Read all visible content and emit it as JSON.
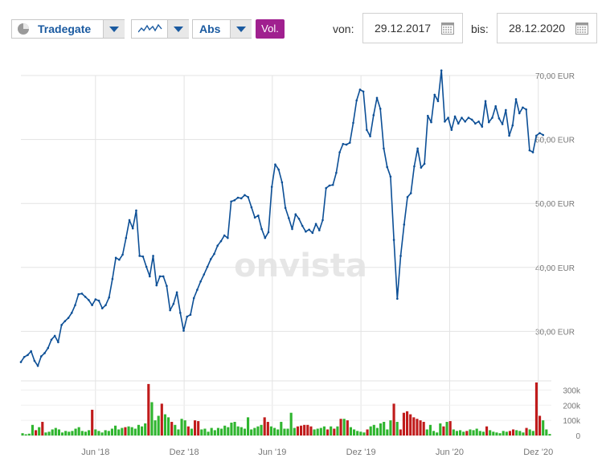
{
  "toolbar": {
    "exchange_label": "Tradegate",
    "mode_label": "Abs",
    "volume_label": "Vol.",
    "from_label": "von:",
    "from_date": "29.12.2017",
    "to_label": "bis:",
    "to_date": "28.12.2020"
  },
  "watermark": "onvista",
  "colors": {
    "line": "#0c4f96",
    "vol_up": "#2fb52f",
    "vol_down": "#c01b1b",
    "vol_button": "#a0208f",
    "grid": "#e3e3e3",
    "axis_text": "#777777"
  },
  "chart_data": [
    {
      "type": "line",
      "name": "price",
      "y_unit": "EUR",
      "ylim": [
        25,
        70.5
      ],
      "y_ticks": [
        30,
        40,
        50,
        60,
        70
      ],
      "y_tick_labels": [
        "30,00 EUR",
        "40,00 EUR",
        "50,00 EUR",
        "60,00 EUR",
        "70,00 EUR"
      ],
      "x_ticks": [
        "Jun '18",
        "Dez '18",
        "Jun '19",
        "Dez '19",
        "Jun '20",
        "Dez '20"
      ],
      "x_tick_dates": [
        "2018-06-01",
        "2018-12-01",
        "2019-06-01",
        "2019-12-01",
        "2020-06-01",
        "2020-12-01"
      ],
      "x_range": [
        "2017-12-29",
        "2020-12-28"
      ],
      "grid": true,
      "points": [
        [
          "2017-12-29",
          25.2
        ],
        [
          "2018-01-05",
          26.0
        ],
        [
          "2018-01-12",
          26.3
        ],
        [
          "2018-01-19",
          26.9
        ],
        [
          "2018-01-26",
          25.4
        ],
        [
          "2018-02-02",
          24.6
        ],
        [
          "2018-02-09",
          26.1
        ],
        [
          "2018-02-16",
          26.6
        ],
        [
          "2018-02-23",
          27.4
        ],
        [
          "2018-03-02",
          28.7
        ],
        [
          "2018-03-09",
          29.3
        ],
        [
          "2018-03-16",
          28.3
        ],
        [
          "2018-03-23",
          31.0
        ],
        [
          "2018-03-30",
          31.6
        ],
        [
          "2018-04-06",
          32.1
        ],
        [
          "2018-04-13",
          32.9
        ],
        [
          "2018-04-20",
          34.1
        ],
        [
          "2018-04-27",
          35.8
        ],
        [
          "2018-05-04",
          35.9
        ],
        [
          "2018-05-11",
          35.4
        ],
        [
          "2018-05-18",
          34.9
        ],
        [
          "2018-05-25",
          34.1
        ],
        [
          "2018-06-01",
          35.0
        ],
        [
          "2018-06-08",
          34.8
        ],
        [
          "2018-06-15",
          33.6
        ],
        [
          "2018-06-22",
          34.1
        ],
        [
          "2018-06-29",
          35.3
        ],
        [
          "2018-07-06",
          38.2
        ],
        [
          "2018-07-13",
          41.5
        ],
        [
          "2018-07-20",
          41.2
        ],
        [
          "2018-07-27",
          42.0
        ],
        [
          "2018-08-03",
          44.6
        ],
        [
          "2018-08-10",
          47.4
        ],
        [
          "2018-08-17",
          46.1
        ],
        [
          "2018-08-24",
          48.9
        ],
        [
          "2018-08-31",
          41.8
        ],
        [
          "2018-09-07",
          41.7
        ],
        [
          "2018-09-14",
          40.1
        ],
        [
          "2018-09-21",
          38.6
        ],
        [
          "2018-09-28",
          41.8
        ],
        [
          "2018-10-05",
          37.2
        ],
        [
          "2018-10-12",
          38.6
        ],
        [
          "2018-10-19",
          38.6
        ],
        [
          "2018-10-26",
          37.1
        ],
        [
          "2018-11-02",
          33.3
        ],
        [
          "2018-11-09",
          34.3
        ],
        [
          "2018-11-16",
          36.1
        ],
        [
          "2018-11-23",
          32.9
        ],
        [
          "2018-11-30",
          30.1
        ],
        [
          "2018-12-07",
          32.3
        ],
        [
          "2018-12-14",
          32.6
        ],
        [
          "2018-12-21",
          35.2
        ],
        [
          "2018-12-28",
          36.5
        ],
        [
          "2019-01-04",
          37.8
        ],
        [
          "2019-01-11",
          38.9
        ],
        [
          "2019-01-18",
          40.1
        ],
        [
          "2019-01-25",
          41.3
        ],
        [
          "2019-02-01",
          42.1
        ],
        [
          "2019-02-08",
          43.4
        ],
        [
          "2019-02-15",
          44.1
        ],
        [
          "2019-02-22",
          45.0
        ],
        [
          "2019-03-01",
          44.6
        ],
        [
          "2019-03-08",
          50.3
        ],
        [
          "2019-03-15",
          50.5
        ],
        [
          "2019-03-22",
          50.9
        ],
        [
          "2019-03-29",
          50.8
        ],
        [
          "2019-04-05",
          51.3
        ],
        [
          "2019-04-12",
          51.0
        ],
        [
          "2019-04-19",
          49.4
        ],
        [
          "2019-04-26",
          47.8
        ],
        [
          "2019-05-03",
          48.1
        ],
        [
          "2019-05-10",
          46.0
        ],
        [
          "2019-05-17",
          44.6
        ],
        [
          "2019-05-24",
          45.5
        ],
        [
          "2019-05-31",
          52.6
        ],
        [
          "2019-06-07",
          56.1
        ],
        [
          "2019-06-14",
          55.3
        ],
        [
          "2019-06-21",
          53.3
        ],
        [
          "2019-06-28",
          49.3
        ],
        [
          "2019-07-05",
          47.7
        ],
        [
          "2019-07-12",
          46.0
        ],
        [
          "2019-07-19",
          48.3
        ],
        [
          "2019-07-26",
          47.6
        ],
        [
          "2019-08-02",
          46.5
        ],
        [
          "2019-08-09",
          45.6
        ],
        [
          "2019-08-16",
          45.9
        ],
        [
          "2019-08-23",
          45.4
        ],
        [
          "2019-08-30",
          46.8
        ],
        [
          "2019-09-06",
          45.8
        ],
        [
          "2019-09-13",
          47.4
        ],
        [
          "2019-09-20",
          52.4
        ],
        [
          "2019-09-27",
          52.8
        ],
        [
          "2019-10-04",
          52.9
        ],
        [
          "2019-10-11",
          54.8
        ],
        [
          "2019-10-18",
          58.0
        ],
        [
          "2019-10-25",
          59.3
        ],
        [
          "2019-11-01",
          59.2
        ],
        [
          "2019-11-08",
          59.5
        ],
        [
          "2019-11-15",
          62.6
        ],
        [
          "2019-11-22",
          66.1
        ],
        [
          "2019-11-29",
          67.8
        ],
        [
          "2019-12-06",
          67.5
        ],
        [
          "2019-12-13",
          61.5
        ],
        [
          "2019-12-20",
          60.5
        ],
        [
          "2019-12-27",
          63.8
        ],
        [
          "2020-01-03",
          66.5
        ],
        [
          "2020-01-10",
          64.8
        ],
        [
          "2020-01-17",
          58.6
        ],
        [
          "2020-01-24",
          55.7
        ],
        [
          "2020-01-31",
          54.2
        ],
        [
          "2020-02-07",
          44.3
        ],
        [
          "2020-02-14",
          35.1
        ],
        [
          "2020-02-21",
          41.8
        ],
        [
          "2020-02-28",
          46.7
        ],
        [
          "2020-03-06",
          51.0
        ],
        [
          "2020-03-13",
          51.6
        ],
        [
          "2020-03-20",
          55.8
        ],
        [
          "2020-03-27",
          58.6
        ],
        [
          "2020-04-03",
          55.6
        ],
        [
          "2020-04-10",
          56.2
        ],
        [
          "2020-04-17",
          63.7
        ],
        [
          "2020-04-24",
          62.7
        ],
        [
          "2020-05-01",
          67.0
        ],
        [
          "2020-05-08",
          66.0
        ],
        [
          "2020-05-15",
          70.8
        ],
        [
          "2020-05-22",
          62.8
        ],
        [
          "2020-05-29",
          63.4
        ],
        [
          "2020-06-05",
          61.5
        ],
        [
          "2020-06-12",
          63.6
        ],
        [
          "2020-06-19",
          62.5
        ],
        [
          "2020-06-26",
          63.4
        ],
        [
          "2020-07-03",
          62.8
        ],
        [
          "2020-07-10",
          63.4
        ],
        [
          "2020-07-17",
          63.1
        ],
        [
          "2020-07-24",
          62.5
        ],
        [
          "2020-07-31",
          62.8
        ],
        [
          "2020-08-07",
          62.0
        ],
        [
          "2020-08-14",
          66.0
        ],
        [
          "2020-08-21",
          62.7
        ],
        [
          "2020-08-28",
          63.4
        ],
        [
          "2020-09-04",
          65.2
        ],
        [
          "2020-09-11",
          63.3
        ],
        [
          "2020-09-18",
          62.4
        ],
        [
          "2020-09-25",
          64.6
        ],
        [
          "2020-10-02",
          60.6
        ],
        [
          "2020-10-09",
          62.2
        ],
        [
          "2020-10-16",
          66.3
        ],
        [
          "2020-10-23",
          64.1
        ],
        [
          "2020-10-30",
          65.0
        ],
        [
          "2020-11-06",
          64.7
        ],
        [
          "2020-11-13",
          58.3
        ],
        [
          "2020-11-20",
          58.0
        ],
        [
          "2020-11-27",
          60.6
        ],
        [
          "2020-12-04",
          61.0
        ],
        [
          "2020-12-11",
          60.7
        ]
      ]
    },
    {
      "type": "bar",
      "name": "volume",
      "ylim": [
        0,
        350000
      ],
      "y_ticks": [
        0,
        100000,
        200000,
        300000
      ],
      "y_tick_labels": [
        "0",
        "100k",
        "200k",
        "300k"
      ],
      "bar_colors": {
        "up": "green",
        "down": "red"
      },
      "volumes": [
        [
          15000,
          "up"
        ],
        [
          8000,
          "up"
        ],
        [
          12000,
          "up"
        ],
        [
          70000,
          "up"
        ],
        [
          35000,
          "down"
        ],
        [
          55000,
          "up"
        ],
        [
          90000,
          "down"
        ],
        [
          20000,
          "up"
        ],
        [
          25000,
          "up"
        ],
        [
          40000,
          "up"
        ],
        [
          50000,
          "up"
        ],
        [
          40000,
          "up"
        ],
        [
          20000,
          "up"
        ],
        [
          30000,
          "up"
        ],
        [
          25000,
          "up"
        ],
        [
          30000,
          "up"
        ],
        [
          45000,
          "up"
        ],
        [
          55000,
          "up"
        ],
        [
          30000,
          "up"
        ],
        [
          25000,
          "up"
        ],
        [
          35000,
          "up"
        ],
        [
          170000,
          "down"
        ],
        [
          40000,
          "up"
        ],
        [
          30000,
          "up"
        ],
        [
          20000,
          "up"
        ],
        [
          35000,
          "up"
        ],
        [
          30000,
          "up"
        ],
        [
          45000,
          "up"
        ],
        [
          65000,
          "up"
        ],
        [
          40000,
          "up"
        ],
        [
          50000,
          "up"
        ],
        [
          55000,
          "down"
        ],
        [
          60000,
          "up"
        ],
        [
          55000,
          "up"
        ],
        [
          45000,
          "up"
        ],
        [
          70000,
          "up"
        ],
        [
          60000,
          "up"
        ],
        [
          80000,
          "up"
        ],
        [
          340000,
          "down"
        ],
        [
          220000,
          "up"
        ],
        [
          100000,
          "up"
        ],
        [
          130000,
          "up"
        ],
        [
          210000,
          "down"
        ],
        [
          140000,
          "up"
        ],
        [
          120000,
          "up"
        ],
        [
          90000,
          "down"
        ],
        [
          70000,
          "up"
        ],
        [
          40000,
          "up"
        ],
        [
          110000,
          "up"
        ],
        [
          100000,
          "up"
        ],
        [
          60000,
          "down"
        ],
        [
          45000,
          "up"
        ],
        [
          100000,
          "down"
        ],
        [
          95000,
          "down"
        ],
        [
          40000,
          "up"
        ],
        [
          45000,
          "up"
        ],
        [
          25000,
          "up"
        ],
        [
          50000,
          "up"
        ],
        [
          35000,
          "up"
        ],
        [
          50000,
          "up"
        ],
        [
          45000,
          "up"
        ],
        [
          65000,
          "up"
        ],
        [
          55000,
          "up"
        ],
        [
          85000,
          "up"
        ],
        [
          90000,
          "up"
        ],
        [
          60000,
          "up"
        ],
        [
          55000,
          "up"
        ],
        [
          45000,
          "up"
        ],
        [
          120000,
          "up"
        ],
        [
          40000,
          "up"
        ],
        [
          50000,
          "up"
        ],
        [
          60000,
          "up"
        ],
        [
          70000,
          "up"
        ],
        [
          120000,
          "down"
        ],
        [
          90000,
          "down"
        ],
        [
          60000,
          "up"
        ],
        [
          50000,
          "up"
        ],
        [
          40000,
          "up"
        ],
        [
          90000,
          "up"
        ],
        [
          45000,
          "up"
        ],
        [
          45000,
          "up"
        ],
        [
          150000,
          "up"
        ],
        [
          50000,
          "up"
        ],
        [
          60000,
          "down"
        ],
        [
          65000,
          "down"
        ],
        [
          70000,
          "down"
        ],
        [
          70000,
          "down"
        ],
        [
          60000,
          "down"
        ],
        [
          40000,
          "up"
        ],
        [
          45000,
          "up"
        ],
        [
          50000,
          "up"
        ],
        [
          60000,
          "up"
        ],
        [
          40000,
          "down"
        ],
        [
          60000,
          "up"
        ],
        [
          45000,
          "down"
        ],
        [
          60000,
          "up"
        ],
        [
          110000,
          "down"
        ],
        [
          110000,
          "up"
        ],
        [
          100000,
          "down"
        ],
        [
          55000,
          "up"
        ],
        [
          40000,
          "up"
        ],
        [
          30000,
          "up"
        ],
        [
          25000,
          "up"
        ],
        [
          20000,
          "up"
        ],
        [
          40000,
          "down"
        ],
        [
          60000,
          "up"
        ],
        [
          70000,
          "up"
        ],
        [
          50000,
          "up"
        ],
        [
          80000,
          "up"
        ],
        [
          90000,
          "up"
        ],
        [
          40000,
          "up"
        ],
        [
          100000,
          "up"
        ],
        [
          210000,
          "down"
        ],
        [
          90000,
          "up"
        ],
        [
          40000,
          "down"
        ],
        [
          150000,
          "down"
        ],
        [
          160000,
          "down"
        ],
        [
          140000,
          "down"
        ],
        [
          120000,
          "down"
        ],
        [
          110000,
          "down"
        ],
        [
          100000,
          "down"
        ],
        [
          90000,
          "down"
        ],
        [
          40000,
          "up"
        ],
        [
          70000,
          "up"
        ],
        [
          30000,
          "up"
        ],
        [
          20000,
          "up"
        ],
        [
          80000,
          "up"
        ],
        [
          60000,
          "down"
        ],
        [
          90000,
          "up"
        ],
        [
          95000,
          "down"
        ],
        [
          40000,
          "up"
        ],
        [
          30000,
          "up"
        ],
        [
          35000,
          "up"
        ],
        [
          25000,
          "up"
        ],
        [
          30000,
          "down"
        ],
        [
          40000,
          "up"
        ],
        [
          35000,
          "up"
        ],
        [
          45000,
          "up"
        ],
        [
          30000,
          "up"
        ],
        [
          25000,
          "up"
        ],
        [
          60000,
          "down"
        ],
        [
          35000,
          "up"
        ],
        [
          25000,
          "up"
        ],
        [
          20000,
          "up"
        ],
        [
          15000,
          "up"
        ],
        [
          30000,
          "up"
        ],
        [
          25000,
          "up"
        ],
        [
          30000,
          "down"
        ],
        [
          40000,
          "down"
        ],
        [
          35000,
          "up"
        ],
        [
          30000,
          "up"
        ],
        [
          20000,
          "up"
        ],
        [
          50000,
          "down"
        ],
        [
          40000,
          "up"
        ],
        [
          30000,
          "up"
        ],
        [
          350000,
          "down"
        ],
        [
          130000,
          "down"
        ],
        [
          100000,
          "up"
        ],
        [
          40000,
          "up"
        ],
        [
          10000,
          "up"
        ]
      ]
    }
  ]
}
